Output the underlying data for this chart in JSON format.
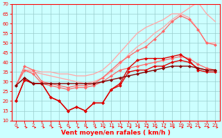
{
  "xlabel": "Vent moyen/en rafales ( km/h )",
  "x": [
    0,
    1,
    2,
    3,
    4,
    5,
    6,
    7,
    8,
    9,
    10,
    11,
    12,
    13,
    14,
    15,
    16,
    17,
    18,
    19,
    20,
    21,
    22,
    23
  ],
  "series": [
    {
      "color": "#ffaaaa",
      "marker": null,
      "ms": 0,
      "lw": 1.0,
      "values": [
        28,
        36,
        36,
        35,
        35,
        34,
        34,
        33,
        33,
        34,
        36,
        40,
        45,
        50,
        55,
        58,
        60,
        62,
        65,
        65,
        63,
        57,
        50,
        50
      ]
    },
    {
      "color": "#ffaaaa",
      "marker": null,
      "ms": 0,
      "lw": 1.0,
      "values": [
        28,
        36,
        35,
        34,
        33,
        32,
        31,
        30,
        29,
        30,
        32,
        35,
        39,
        44,
        48,
        51,
        55,
        58,
        62,
        65,
        68,
        71,
        65,
        61
      ]
    },
    {
      "color": "#ff6666",
      "marker": "D",
      "ms": 2.0,
      "lw": 0.9,
      "values": [
        28,
        38,
        36,
        30,
        29,
        28,
        27,
        28,
        28,
        29,
        32,
        36,
        40,
        43,
        46,
        48,
        52,
        56,
        61,
        64,
        62,
        57,
        50,
        49
      ]
    },
    {
      "color": "#ff6666",
      "marker": "D",
      "ms": 2.0,
      "lw": 0.9,
      "values": [
        28,
        36,
        34,
        29,
        28,
        27,
        26,
        27,
        27,
        28,
        30,
        33,
        36,
        37,
        38,
        39,
        40,
        41,
        42,
        43,
        42,
        39,
        37,
        36
      ]
    },
    {
      "color": "#dd0000",
      "marker": "D",
      "ms": 2.0,
      "lw": 1.0,
      "values": [
        20,
        31,
        29,
        29,
        22,
        20,
        15,
        17,
        15,
        19,
        19,
        26,
        28,
        35,
        36,
        36,
        38,
        38,
        40,
        41,
        40,
        37,
        36,
        36
      ]
    },
    {
      "color": "#dd0000",
      "marker": "D",
      "ms": 2.0,
      "lw": 1.0,
      "values": [
        20,
        31,
        29,
        29,
        22,
        20,
        15,
        17,
        15,
        19,
        19,
        26,
        29,
        37,
        41,
        42,
        42,
        42,
        43,
        44,
        41,
        36,
        35,
        35
      ]
    },
    {
      "color": "#880000",
      "marker": "D",
      "ms": 2.0,
      "lw": 1.0,
      "values": [
        28,
        32,
        29,
        29,
        29,
        29,
        29,
        29,
        29,
        29,
        30,
        31,
        32,
        33,
        34,
        35,
        36,
        37,
        38,
        38,
        38,
        37,
        36,
        36
      ]
    }
  ],
  "ylim": [
    10,
    70
  ],
  "yticks": [
    10,
    15,
    20,
    25,
    30,
    35,
    40,
    45,
    50,
    55,
    60,
    65,
    70
  ],
  "xlim": [
    -0.5,
    23.5
  ],
  "xticks": [
    0,
    1,
    2,
    3,
    4,
    5,
    6,
    7,
    8,
    9,
    10,
    11,
    12,
    13,
    14,
    15,
    16,
    17,
    18,
    19,
    20,
    21,
    22,
    23
  ],
  "bg_color": "#ccffff",
  "grid_color": "#99cccc",
  "spine_color": "#ff0000",
  "tick_color": "#ff0000",
  "label_color": "#ff0000",
  "label_fontsize": 6.5,
  "tick_fontsize": 5.0
}
